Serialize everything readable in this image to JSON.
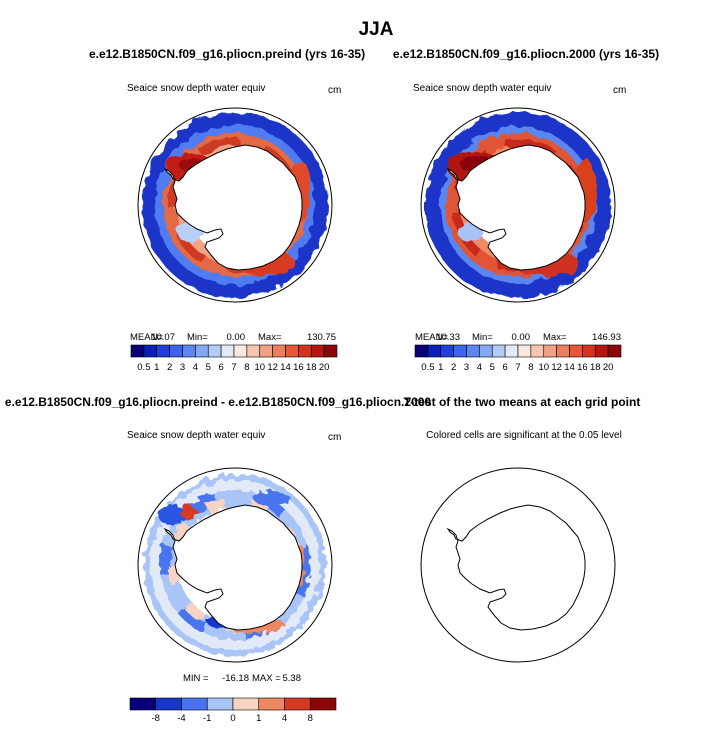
{
  "page": {
    "season_title": "JJA",
    "left_case": "e.e12.B1850CN.f09_g16.pliocn.preind (yrs 16-35)",
    "right_case": "e.e12.B1850CN.f09_g16.pliocn.2000 (yrs 16-35)",
    "diff_title": "e.e12.B1850CN.f09_g16.pliocn.preind - e.e12.B1850CN.f09_g16.pliocn.2000",
    "ttest_title": "T-test of the two means at each grid point"
  },
  "chart_data": [
    {
      "type": "heatmap",
      "projection": "south polar stereographic",
      "variable": "Seaice snow depth water equiv",
      "units": "cm",
      "stats": {
        "mean_label": "MEAN=",
        "mean": "10.07",
        "min_label": "Min=",
        "min": "0.00",
        "max_label": "Max=",
        "max": "130.75"
      },
      "colorbar_labels": [
        "0.5",
        "1",
        "2",
        "3",
        "4",
        "5",
        "6",
        "7",
        "8",
        "10",
        "12",
        "14",
        "16",
        "18",
        "20"
      ]
    },
    {
      "type": "heatmap",
      "projection": "south polar stereographic",
      "variable": "Seaice snow depth water equiv",
      "units": "cm",
      "stats": {
        "mean_label": "MEAN=",
        "mean": "10.33",
        "min_label": "Min=",
        "min": "0.00",
        "max_label": "Max=",
        "max": "146.93"
      },
      "colorbar_labels": [
        "0.5",
        "1",
        "2",
        "3",
        "4",
        "5",
        "6",
        "7",
        "8",
        "10",
        "12",
        "14",
        "16",
        "18",
        "20"
      ]
    },
    {
      "type": "heatmap",
      "projection": "south polar stereographic",
      "variable": "Seaice snow depth water equiv",
      "units": "cm",
      "stats": {
        "min_label": "MIN =",
        "min": "-16.18",
        "max_label": "MAX =",
        "max": "5.38"
      },
      "colorbar_labels": [
        "-8",
        "-4",
        "-1",
        "0",
        "1",
        "4",
        "8"
      ]
    },
    {
      "type": "heatmap",
      "projection": "south polar stereographic",
      "subtitle": "Colored cells are significant at the 0.05 level"
    }
  ],
  "colors": {
    "abs_scale": [
      "#08007a",
      "#0a1fb4",
      "#1e40d8",
      "#3c63ea",
      "#5b85f0",
      "#84a8f4",
      "#b2cbf7",
      "#e2eaf8",
      "#fbe8df",
      "#f8c5b0",
      "#f3a184",
      "#ee7d5b",
      "#e65734",
      "#d5341c",
      "#b51610",
      "#8c0608"
    ],
    "diff_scale": [
      "#08007a",
      "#1637c8",
      "#4a74ee",
      "#a9c4f6",
      "#f7d4c2",
      "#ee8862",
      "#d63a20",
      "#8c0608"
    ]
  }
}
